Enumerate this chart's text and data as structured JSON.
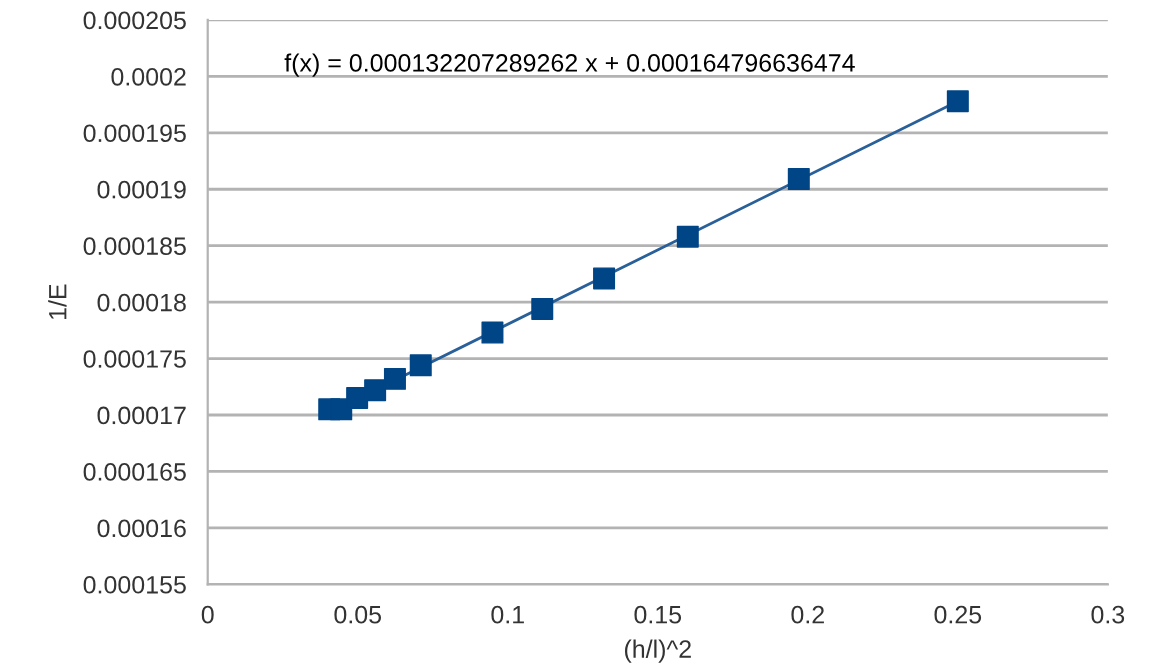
{
  "chart_data": {
    "type": "scatter",
    "xlabel": "(h/l)^2",
    "ylabel": "1/E",
    "annotations": [
      "f(x) = 0.000132207289262 x + 0.000164796636474"
    ],
    "series": [
      {
        "color": "#004586",
        "marker": "square",
        "x": [
          0.0405,
          0.0445,
          0.0498,
          0.0558,
          0.0624,
          0.071,
          0.0949,
          0.1115,
          0.1321,
          0.16,
          0.197,
          0.25
        ],
        "values": [
          0.0001705,
          0.0001705,
          0.0001715,
          0.0001722,
          0.0001732,
          0.0001744,
          0.0001773,
          0.0001794,
          0.0001821,
          0.0001858,
          0.0001909,
          0.0001978
        ]
      },
      {
        "type": "line",
        "color": "#2a6099",
        "marker": "none",
        "x": [
          0.0405,
          0.25
        ],
        "values": [
          0.0001702,
          0.0001978
        ]
      }
    ],
    "xlim": [
      0,
      0.3
    ],
    "xticks": [
      0,
      0.05,
      0.1,
      0.15,
      0.2,
      0.25,
      0.3
    ],
    "ylim": [
      0.000155,
      0.000205
    ],
    "yticks": [
      0.000155,
      0.00016,
      0.000165,
      0.00017,
      0.000175,
      0.00018,
      0.000185,
      0.00019,
      0.000195,
      0.0002,
      0.000205
    ],
    "grid": "y",
    "legend": false
  }
}
